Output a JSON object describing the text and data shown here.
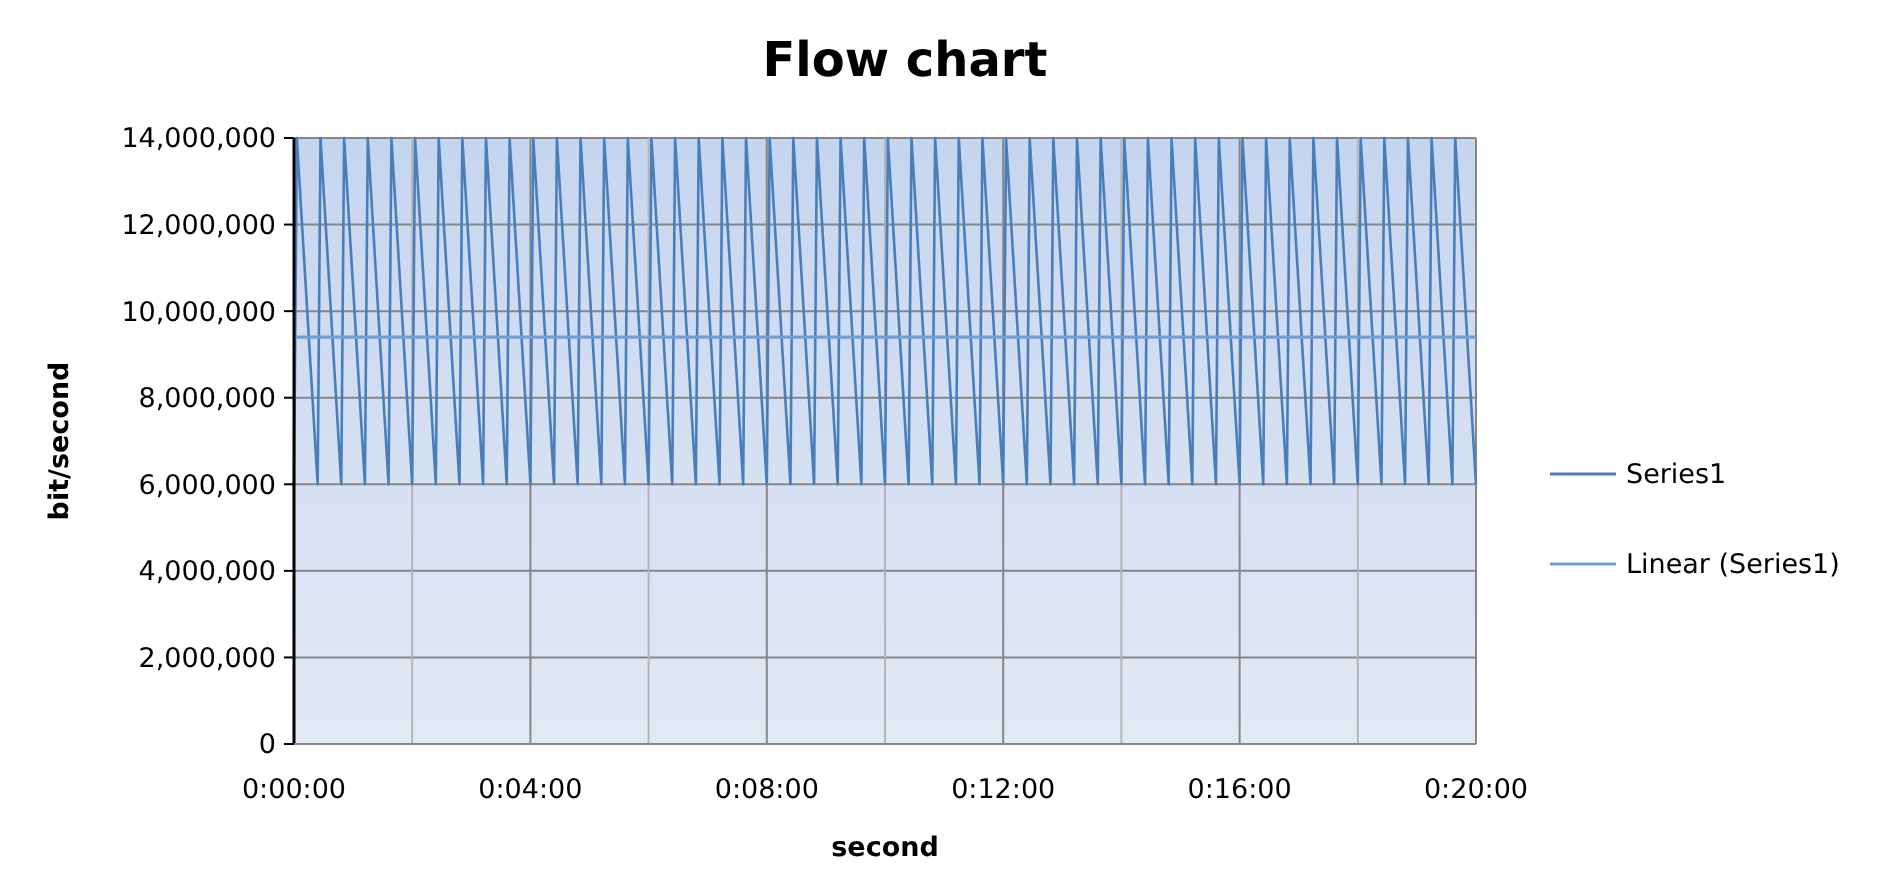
{
  "chart_data": {
    "type": "line",
    "title": "Flow chart",
    "xlabel": "second",
    "ylabel": "bit/second",
    "xlim": [
      0,
      0.33333
    ],
    "xticks": [
      {
        "value": 0,
        "label": "0:00:00"
      },
      {
        "value": 0.03333,
        "label": null
      },
      {
        "value": 0.06667,
        "label": "0:04:00"
      },
      {
        "value": 0.1,
        "label": null
      },
      {
        "value": 0.13333,
        "label": "0:08:00"
      },
      {
        "value": 0.16667,
        "label": null
      },
      {
        "value": 0.2,
        "label": "0:12:00"
      },
      {
        "value": 0.23333,
        "label": null
      },
      {
        "value": 0.26667,
        "label": "0:16:00"
      },
      {
        "value": 0.3,
        "label": null
      },
      {
        "value": 0.33333,
        "label": "0:20:00"
      }
    ],
    "ylim": [
      0,
      14000000
    ],
    "yticks": [
      0,
      {
        "value": 2000000,
        "label": "2,000,000"
      },
      {
        "value": 4000000,
        "label": "4,000,000"
      },
      {
        "value": 6000000,
        "label": "6,000,000"
      },
      {
        "value": 8000000,
        "label": "8,000,000"
      },
      {
        "value": 10000000,
        "label": "10,000,000"
      },
      {
        "value": 12000000,
        "label": "12,000,000"
      },
      {
        "value": 14000000,
        "label": "14,000,000"
      }
    ],
    "grid": true,
    "legend": "right",
    "marker": "none",
    "line_style": "solid",
    "series": [
      {
        "name": "Series1",
        "color": "#4a7ebb",
        "x": [
          0,
          0.0008,
          0.00667,
          0.00747,
          0.01333,
          0.01413,
          0.02,
          0.0208,
          0.02667,
          0.02747,
          0.03333,
          0.03413,
          0.04,
          0.0408,
          0.04667,
          0.04747,
          0.05333,
          0.05413,
          0.06,
          0.0608,
          0.06667,
          0.06747,
          0.07333,
          0.07413,
          0.08,
          0.0808,
          0.08667,
          0.08747,
          0.09333,
          0.09413,
          0.1,
          0.1008,
          0.10667,
          0.10747,
          0.11333,
          0.11413,
          0.12,
          0.1208,
          0.12667,
          0.12747,
          0.13333,
          0.13413,
          0.14,
          0.1408,
          0.14667,
          0.14747,
          0.15333,
          0.15413,
          0.16,
          0.1608,
          0.16667,
          0.16747,
          0.17333,
          0.17413,
          0.18,
          0.1808,
          0.18667,
          0.18747,
          0.19333,
          0.19413,
          0.2,
          0.2008,
          0.20667,
          0.20747,
          0.21333,
          0.21413,
          0.22,
          0.2208,
          0.22667,
          0.22747,
          0.23333,
          0.23413,
          0.24,
          0.2408,
          0.24667,
          0.24747,
          0.25333,
          0.25413,
          0.26,
          0.2608,
          0.26667,
          0.26747,
          0.27333,
          0.27413,
          0.28,
          0.2808,
          0.28667,
          0.28747,
          0.29333,
          0.29413,
          0.3,
          0.3008,
          0.30667,
          0.30747,
          0.31333,
          0.31413,
          0.32,
          0.3208,
          0.32667,
          0.32747,
          0.33333
        ],
        "values": [
          6000000,
          14000000,
          6000000,
          14000000,
          6000000,
          14000000,
          6000000,
          14000000,
          6000000,
          14000000,
          6000000,
          14000000,
          6000000,
          14000000,
          6000000,
          14000000,
          6000000,
          14000000,
          6000000,
          14000000,
          6000000,
          14000000,
          6000000,
          14000000,
          6000000,
          14000000,
          6000000,
          14000000,
          6000000,
          14000000,
          6000000,
          14000000,
          6000000,
          14000000,
          6000000,
          14000000,
          6000000,
          14000000,
          6000000,
          14000000,
          6000000,
          14000000,
          6000000,
          14000000,
          6000000,
          14000000,
          6000000,
          14000000,
          6000000,
          14000000,
          6000000,
          14000000,
          6000000,
          14000000,
          6000000,
          14000000,
          6000000,
          14000000,
          6000000,
          14000000,
          6000000,
          14000000,
          6000000,
          14000000,
          6000000,
          14000000,
          6000000,
          14000000,
          6000000,
          14000000,
          6000000,
          14000000,
          6000000,
          14000000,
          6000000,
          14000000,
          6000000,
          14000000,
          6000000,
          14000000,
          6000000,
          14000000,
          6000000,
          14000000,
          6000000,
          14000000,
          6000000,
          14000000,
          6000000,
          14000000,
          6000000,
          14000000,
          6000000,
          14000000,
          6000000,
          14000000,
          6000000,
          14000000,
          6000000,
          14000000,
          6000000
        ]
      },
      {
        "name": "Linear (Series1)",
        "color": "#6f9fd8",
        "type": "line",
        "x": [
          0,
          0.33333
        ],
        "values": [
          9400000,
          9400000
        ]
      }
    ]
  }
}
